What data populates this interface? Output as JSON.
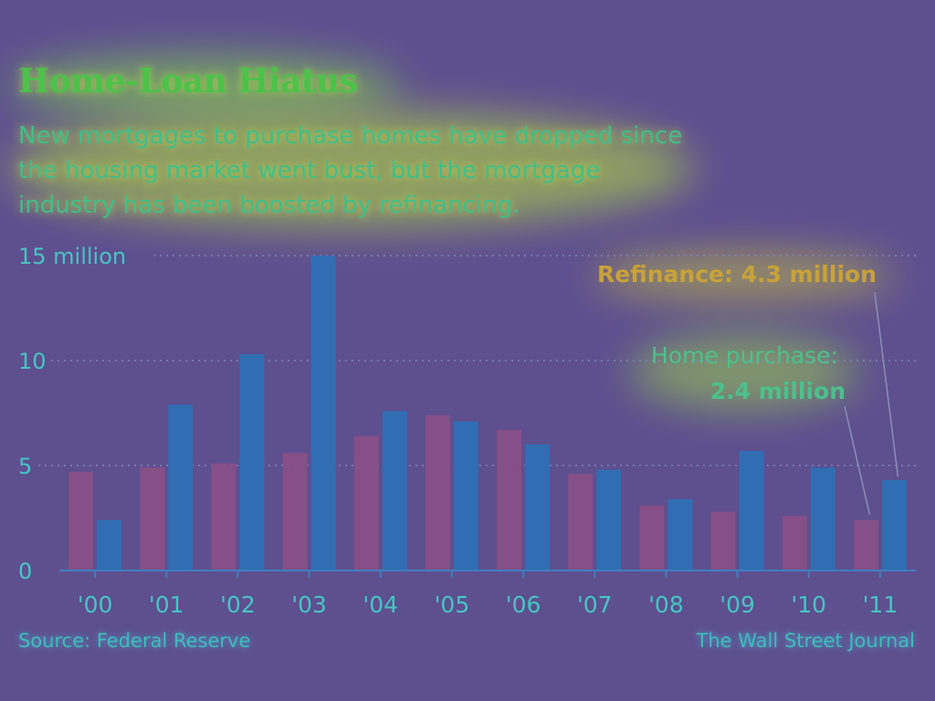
{
  "header": {
    "title": "Home-Loan Hiatus",
    "subtitle": "New mortgages to purchase homes have dropped since the housing market went bust, but the mortgage industry has been boosted by refinancing."
  },
  "footer": {
    "source": "Source: Federal Reserve",
    "publisher": "The Wall Street Journal"
  },
  "annotations": {
    "refinance": "Refinance: 4.3 million",
    "purchase_line1": "Home purchase:",
    "purchase_line2": "2.4 million"
  },
  "colors": {
    "background": "#5e4f8f",
    "purchase_bar": "#8a4f86",
    "refinance_bar": "#2e6fb4",
    "axis_text": "#45c6c2",
    "grid": "#7a88b8"
  },
  "chart_data": {
    "type": "bar",
    "categories": [
      "'00",
      "'01",
      "'02",
      "'03",
      "'04",
      "'05",
      "'06",
      "'07",
      "'08",
      "'09",
      "'10",
      "'11"
    ],
    "series": [
      {
        "name": "Home purchase",
        "values": [
          4.7,
          4.9,
          5.1,
          5.6,
          6.4,
          7.4,
          6.7,
          4.6,
          3.1,
          2.8,
          2.6,
          2.4
        ]
      },
      {
        "name": "Refinance",
        "values": [
          2.4,
          7.9,
          10.3,
          15.0,
          7.6,
          7.1,
          6.0,
          4.8,
          3.4,
          5.7,
          4.9,
          4.3
        ]
      }
    ],
    "ylim": [
      0,
      15
    ],
    "yticks": [
      {
        "value": 0,
        "label": "0"
      },
      {
        "value": 5,
        "label": "5"
      },
      {
        "value": 10,
        "label": "10"
      },
      {
        "value": 15,
        "label": "15 million"
      }
    ],
    "grid": true,
    "legend": "none"
  }
}
